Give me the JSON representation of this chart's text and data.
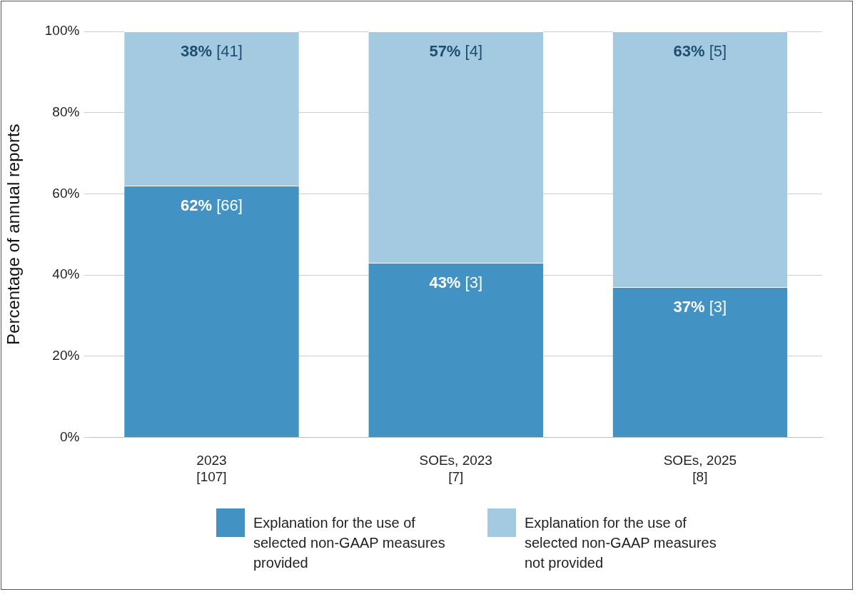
{
  "chart_data": {
    "type": "bar",
    "stacked": true,
    "ylabel": "Percentage of annual reports",
    "categories": [
      "2023\n[107]",
      "SOEs, 2023\n[7]",
      "SOEs, 2025\n[8]"
    ],
    "series": [
      {
        "name": "Explanation for the use of selected non-GAAP measures provided",
        "color": "#4293c3",
        "values": [
          62,
          43,
          37
        ],
        "value_labels": [
          "62% [66]",
          "43% [3]",
          "37% [3]"
        ]
      },
      {
        "name": "Explanation for the use of selected non-GAAP measures not provided",
        "color": "#a3cae0",
        "values": [
          38,
          57,
          63
        ],
        "value_labels": [
          "38% [41]",
          "57% [4]",
          "63% [5]"
        ]
      }
    ],
    "ylim": [
      0,
      100
    ],
    "yticks": [
      {
        "value": 0,
        "label": "0%"
      },
      {
        "value": 20,
        "label": "20%"
      },
      {
        "value": 40,
        "label": "40%"
      },
      {
        "value": 60,
        "label": "60%"
      },
      {
        "value": 80,
        "label": "80%"
      },
      {
        "value": 100,
        "label": "100%"
      }
    ],
    "grid": "y",
    "legend": "bottom"
  }
}
